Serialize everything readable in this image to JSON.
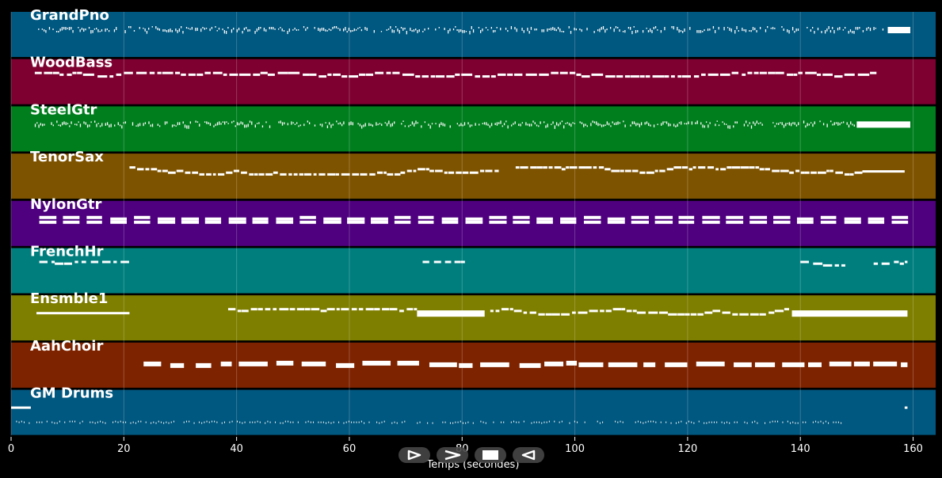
{
  "window": {
    "background": "#000000"
  },
  "axis": {
    "xlabel": "Temps (secondes)",
    "xlim": [
      0,
      164
    ],
    "ticks": [
      0,
      20,
      40,
      60,
      80,
      100,
      120,
      140,
      160
    ]
  },
  "controls": [
    {
      "name": "play-button",
      "icon": "play-outline-icon"
    },
    {
      "name": "next-button",
      "icon": "chevron-right-icon"
    },
    {
      "name": "stop-button",
      "icon": "stop-icon"
    },
    {
      "name": "previous-button",
      "icon": "triangle-left-outline-icon"
    }
  ],
  "tracks": [
    {
      "id": "grandpno",
      "label": "GrandPno",
      "color": "#00577f",
      "style": "dense",
      "segments": [
        [
          4.8,
          155.5
        ]
      ],
      "ends": [
        [
          155.5,
          159.5,
          2
        ]
      ]
    },
    {
      "id": "woodbass",
      "label": "WoodBass",
      "color": "#7e0030",
      "style": "notes",
      "segments": [
        [
          4.2,
          153.5
        ]
      ],
      "note": [
        1.6,
        0.6
      ],
      "lanes": 2
    },
    {
      "id": "steelgtr",
      "label": "SteelGtr",
      "color": "#007e1e",
      "style": "dense",
      "segments": [
        [
          4.2,
          149.5
        ]
      ],
      "ends": [
        [
          150,
          159.5,
          2
        ]
      ]
    },
    {
      "id": "tenorsax",
      "label": "TenorSax",
      "color": "#7e5300",
      "style": "notes",
      "segments": [
        [
          21,
          86.5
        ],
        [
          89.5,
          151
        ]
      ],
      "note": [
        1.2,
        0.4
      ],
      "lanes": 4,
      "ends": [
        [
          151,
          158.5,
          1
        ]
      ]
    },
    {
      "id": "nylongtr",
      "label": "NylonGtr",
      "color": "#4e007e",
      "style": "chords",
      "segments": [
        [
          5,
          159.5
        ]
      ],
      "note": [
        3.2,
        1.0
      ]
    },
    {
      "id": "frenchhr",
      "label": "FrenchHr",
      "color": "#007e7e",
      "style": "notes",
      "segments": [
        [
          5,
          21
        ],
        [
          73,
          80.5
        ],
        [
          140,
          148
        ],
        [
          153,
          159
        ]
      ],
      "note": [
        1.3,
        0.9
      ],
      "lanes": 2
    },
    {
      "id": "ensmble1",
      "label": "Ensmble1",
      "color": "#7e7e00",
      "style": "notes",
      "segments": [
        [
          38.5,
          72
        ],
        [
          85,
          138
        ]
      ],
      "note": [
        1.3,
        0.5
      ],
      "lanes": 3,
      "ends": [
        [
          4.5,
          21,
          1
        ],
        [
          72,
          84,
          2
        ],
        [
          138.5,
          159,
          2
        ]
      ]
    },
    {
      "id": "aahchoir",
      "label": "AahChoir",
      "color": "#7e2300",
      "style": "blocks",
      "segments": [
        [
          23.5,
          159
        ]
      ],
      "note": [
        3.0,
        1.2
      ]
    },
    {
      "id": "gmdrums",
      "label": "GM Drums",
      "color": "#00577f",
      "style": "sparse",
      "segments": [
        [
          0,
          147.5
        ]
      ],
      "ends": [
        [
          0,
          3.5,
          1
        ],
        [
          158.5,
          159,
          1
        ]
      ]
    }
  ]
}
